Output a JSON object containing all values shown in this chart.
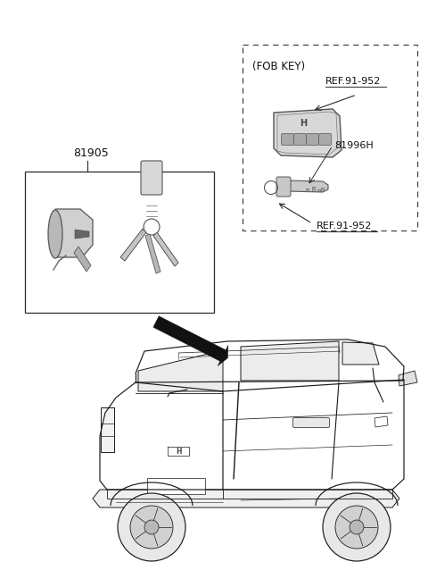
{
  "bg_color": "#ffffff",
  "part_81905_label": "81905",
  "part_81996H_label": "81996H",
  "ref_952_label1": "REF.91-952",
  "ref_952_label2": "REF.91-952",
  "fob_key_label": "(FOB KEY)",
  "line_color": "#2a2a2a",
  "dashed_border_color": "#444444",
  "solid_border_color": "#2a2a2a",
  "text_color": "#111111",
  "fig_width": 4.8,
  "fig_height": 6.57,
  "dpi": 100
}
